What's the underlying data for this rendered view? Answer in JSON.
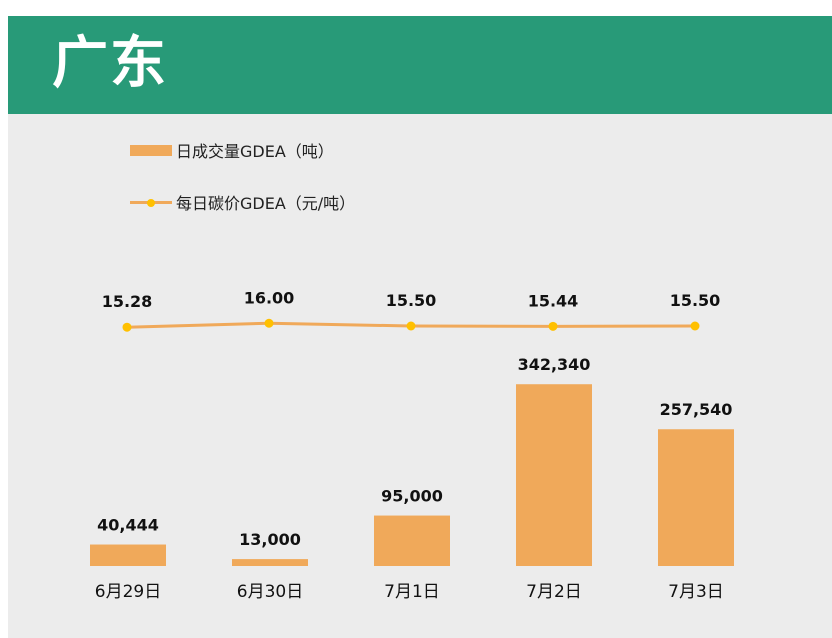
{
  "header": {
    "title": "广东"
  },
  "colors": {
    "header_bg": "#289a78",
    "bar": "#f0a95a",
    "line": "#f0a95a",
    "marker": "#ffc000",
    "background": "#ececec"
  },
  "chart_data": {
    "type": "bar",
    "categories": [
      "6月29日",
      "6月30日",
      "7月1日",
      "7月2日",
      "7月3日"
    ],
    "series": [
      {
        "name": "日成交量GDEA（吨）",
        "kind": "bar",
        "values": [
          40444,
          13000,
          95000,
          342340,
          257540
        ],
        "labels": [
          "40,444",
          "13,000",
          "95,000",
          "342,340",
          "257,540"
        ]
      },
      {
        "name": "每日碳价GDEA（元/吨）",
        "kind": "line",
        "values": [
          15.28,
          16.0,
          15.5,
          15.44,
          15.5
        ],
        "labels": [
          "15.28",
          "16.00",
          "15.50",
          "15.44",
          "15.50"
        ]
      }
    ],
    "legend_position": "top-left",
    "grid": false
  }
}
